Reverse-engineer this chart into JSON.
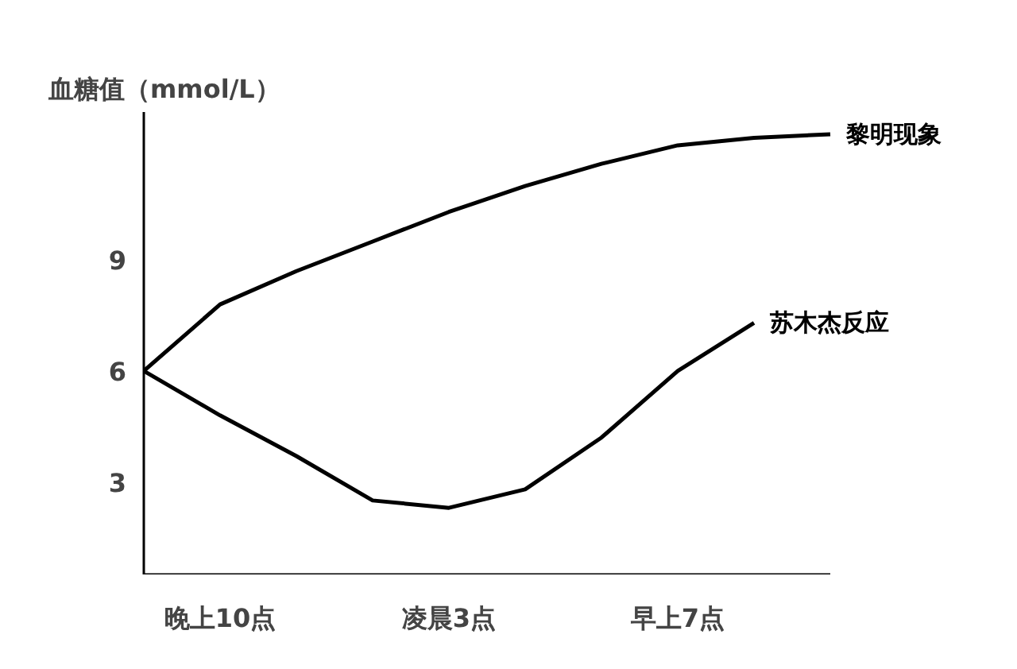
{
  "chart_data": {
    "type": "line",
    "ylabel": "血糖值（mmol/L）",
    "ylim": [
      0.5,
      13.0
    ],
    "categories": [
      null,
      "晚上10点",
      null,
      null,
      "凌晨3点",
      null,
      null,
      "早上7点",
      null,
      null
    ],
    "yticks": [
      3,
      6,
      9
    ],
    "grid": false,
    "marker": "none",
    "line_style": "solid",
    "series": [
      {
        "name": "黎明现象",
        "color": "#000000",
        "values": [
          6,
          7.8,
          8.7,
          9.5,
          10.3,
          11.0,
          11.6,
          12.1,
          12.3,
          12.4
        ]
      },
      {
        "name": "苏木杰反应",
        "color": "#000000",
        "values": [
          6,
          4.8,
          3.7,
          2.5,
          2.3,
          2.8,
          4.2,
          6.0,
          7.3,
          null
        ]
      }
    ]
  }
}
